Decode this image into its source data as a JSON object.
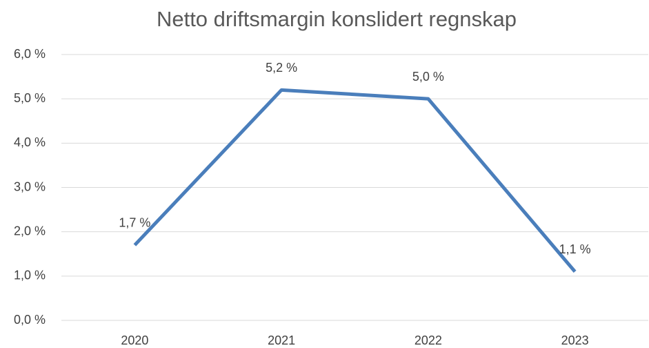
{
  "chart_data": {
    "type": "line",
    "title": "Netto driftsmargin konslidert regnskap",
    "categories": [
      "2020",
      "2021",
      "2022",
      "2023"
    ],
    "values": [
      1.7,
      5.2,
      5.0,
      1.1
    ],
    "value_labels": [
      "1,7 %",
      "5,2 %",
      "5,0 %",
      "1,1 %"
    ],
    "color": "#4a7ebb",
    "ylim": [
      0,
      6
    ],
    "yticks": [
      {
        "value": 0,
        "label": "0,0 %"
      },
      {
        "value": 1,
        "label": "1,0 %"
      },
      {
        "value": 2,
        "label": "2,0 %"
      },
      {
        "value": 3,
        "label": "3,0 %"
      },
      {
        "value": 4,
        "label": "4,0 %"
      },
      {
        "value": 5,
        "label": "5,0 %"
      },
      {
        "value": 6,
        "label": "6,0 %"
      }
    ],
    "grid": true
  }
}
